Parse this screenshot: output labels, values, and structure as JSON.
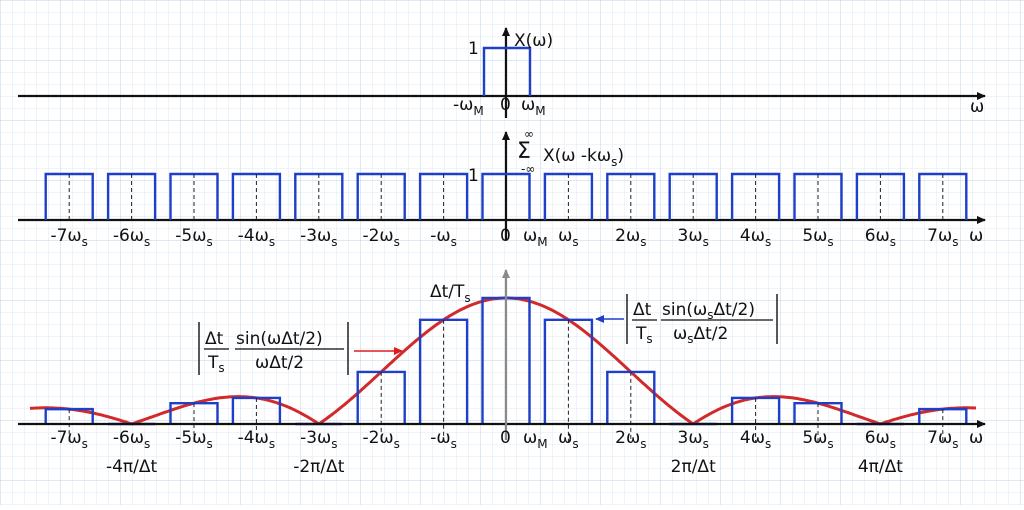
{
  "panel1": {
    "ylabel": "X(ω)",
    "one": "1",
    "neg_wm": "-ω",
    "neg_wm_sub": "M",
    "zero": "0",
    "wm": "ω",
    "wm_sub": "M",
    "axis": "ω"
  },
  "panel2": {
    "sum_upper": "∞",
    "sum_sigma": "Σ",
    "sum_lower": "-∞",
    "ylabel": "X(ω -kω",
    "ylabel_sub": "s",
    "ylabel_close": ")",
    "one": "1",
    "zero": "0",
    "axis": "ω",
    "wm": "ω",
    "wm_sub": "M",
    "ticks": [
      {
        "k": -7,
        "pre": "-7ω",
        "sub": "s"
      },
      {
        "k": -6,
        "pre": "-6ω",
        "sub": "s"
      },
      {
        "k": -5,
        "pre": "-5ω",
        "sub": "s"
      },
      {
        "k": -4,
        "pre": "-4ω",
        "sub": "s"
      },
      {
        "k": -3,
        "pre": "-3ω",
        "sub": "s"
      },
      {
        "k": -2,
        "pre": "-2ω",
        "sub": "s"
      },
      {
        "k": -1,
        "pre": "-ω",
        "sub": "s"
      },
      {
        "k": 1,
        "pre": "ω",
        "sub": "s"
      },
      {
        "k": 2,
        "pre": "2ω",
        "sub": "s"
      },
      {
        "k": 3,
        "pre": "3ω",
        "sub": "s"
      },
      {
        "k": 4,
        "pre": "4ω",
        "sub": "s"
      },
      {
        "k": 5,
        "pre": "5ω",
        "sub": "s"
      },
      {
        "k": 6,
        "pre": "6ω",
        "sub": "s"
      },
      {
        "k": 7,
        "pre": "7ω",
        "sub": "s"
      }
    ]
  },
  "panel3": {
    "ylabel": "Δt/T",
    "ylabel_sub": "s",
    "zero": "0",
    "axis": "ω",
    "wm": "ω",
    "wm_sub": "M",
    "pi_labels": [
      {
        "k": -6,
        "text": "-4π/Δt"
      },
      {
        "k": -3,
        "text": "-2π/Δt"
      },
      {
        "k": 3,
        "text": "2π/Δt"
      },
      {
        "k": 6,
        "text": "4π/Δt"
      }
    ],
    "left_formula": {
      "frac_num": "Δt",
      "frac_den": "T",
      "frac_den_sub": "s",
      "num": "sin(ωΔt/2)",
      "den": "ωΔt/2"
    },
    "right_formula": {
      "frac_num": "Δt",
      "frac_den": "T",
      "frac_den_sub": "s",
      "num_pre": "sin(ω",
      "num_sub": "s",
      "num_post": "Δt/2)",
      "den_pre": "ω",
      "den_sub": "s",
      "den_post": "Δt/2"
    }
  },
  "colors": {
    "pulse": "#1f3fc8",
    "envelope": "#d12a2a",
    "grid": "#c9ddf1",
    "arrow_red": "#e01b1b",
    "arrow_blue": "#1f3fc8"
  },
  "chart_data": {
    "type": "line",
    "x_spacing": "ω_s",
    "zero_crossings_at_k": [
      -6,
      -3,
      3,
      6
    ],
    "series": [
      {
        "pulse_width_at_k": [
          "-ω_M",
          "ω_M"
        ]
      }
    ]
  }
}
